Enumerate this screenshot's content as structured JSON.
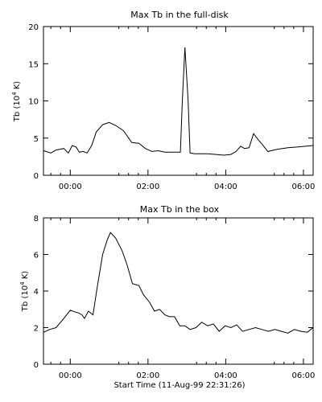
{
  "chart_data": [
    {
      "type": "line",
      "title": "Max Tb in the full-disk",
      "xlabel": "",
      "ylabel": "Tb (10",
      "ylabel_sup": "4",
      "ylabel_suffix": " K)",
      "xlim": [
        -41.4,
        375
      ],
      "ylim": [
        0,
        20
      ],
      "yticks": [
        0,
        5,
        10,
        15,
        20
      ],
      "xticks": [
        {
          "v": 0,
          "label": "00:00"
        },
        {
          "v": 120,
          "label": "02:00"
        },
        {
          "v": 240,
          "label": "04:00"
        },
        {
          "v": 360,
          "label": "06:00"
        }
      ],
      "x_unit": "minutes from 00:00",
      "series": [
        {
          "x": [
            -41,
            -30,
            -22,
            -10,
            -3,
            3,
            9,
            14,
            20,
            26,
            33,
            40,
            50,
            60,
            70,
            82,
            95,
            106,
            116,
            126,
            136,
            146,
            158,
            170,
            173,
            177,
            182,
            185,
            192,
            200,
            212,
            225,
            237,
            248,
            256,
            263,
            269,
            276,
            283,
            290,
            296,
            305,
            320,
            336,
            352,
            375
          ],
          "y": [
            3.3,
            3.0,
            3.4,
            3.6,
            3.0,
            4.0,
            3.8,
            3.1,
            3.2,
            3.0,
            4.0,
            5.8,
            6.8,
            7.1,
            6.7,
            6.0,
            4.4,
            4.3,
            3.6,
            3.2,
            3.3,
            3.1,
            3.1,
            3.1,
            10.0,
            17.2,
            10.0,
            3.0,
            2.9,
            2.9,
            2.9,
            2.8,
            2.7,
            2.8,
            3.2,
            3.9,
            3.6,
            3.7,
            5.6,
            4.8,
            4.2,
            3.2,
            3.5,
            3.7,
            3.8,
            4.0
          ]
        }
      ]
    },
    {
      "type": "line",
      "title": "Max Tb in the box",
      "xlabel": "Start Time (11-Aug-99 22:31:26)",
      "ylabel": "Tb (10",
      "ylabel_sup": "4",
      "ylabel_suffix": " K)",
      "xlim": [
        -41.4,
        375
      ],
      "ylim": [
        0,
        8
      ],
      "yticks": [
        0,
        2,
        4,
        6,
        8
      ],
      "xticks": [
        {
          "v": 0,
          "label": "00:00"
        },
        {
          "v": 120,
          "label": "02:00"
        },
        {
          "v": 240,
          "label": "04:00"
        },
        {
          "v": 360,
          "label": "06:00"
        }
      ],
      "x_unit": "minutes from 00:00",
      "series": [
        {
          "x": [
            -41,
            -32,
            -22,
            -10,
            0,
            8,
            13,
            18,
            22,
            28,
            35,
            42,
            50,
            57,
            62,
            70,
            80,
            88,
            96,
            106,
            113,
            122,
            130,
            138,
            146,
            153,
            161,
            169,
            177,
            185,
            194,
            203,
            212,
            221,
            230,
            239,
            248,
            257,
            266,
            276,
            286,
            296,
            306,
            316,
            326,
            336,
            346,
            356,
            366,
            375
          ],
          "y": [
            1.75,
            1.9,
            2.0,
            2.5,
            2.95,
            2.85,
            2.8,
            2.7,
            2.5,
            2.9,
            2.7,
            4.3,
            6.0,
            6.8,
            7.2,
            6.9,
            6.2,
            5.4,
            4.4,
            4.3,
            3.8,
            3.4,
            2.9,
            3.0,
            2.7,
            2.6,
            2.6,
            2.1,
            2.1,
            1.9,
            2.0,
            2.3,
            2.1,
            2.2,
            1.8,
            2.1,
            2.0,
            2.15,
            1.8,
            1.9,
            2.0,
            1.9,
            1.8,
            1.9,
            1.8,
            1.7,
            1.9,
            1.8,
            1.75,
            2.0
          ]
        }
      ]
    }
  ]
}
